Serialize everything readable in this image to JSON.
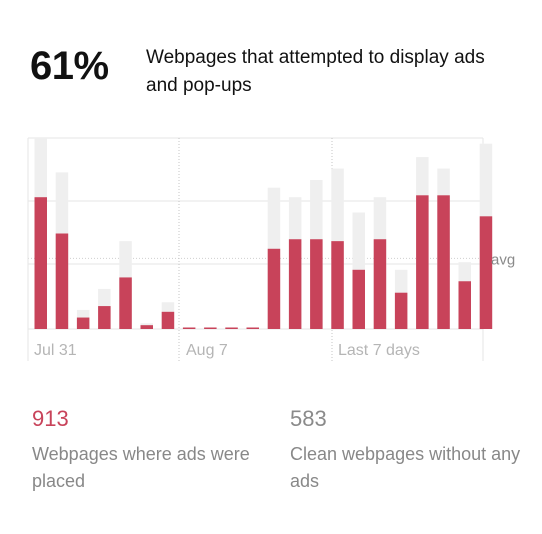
{
  "header": {
    "percent": "61%",
    "description": "Webpages that attempted to display ads and pop-ups"
  },
  "colors": {
    "ads": "#c8435a",
    "total": "#efefef",
    "grid": "#e6e6e6",
    "axis_text": "#b5b5b5"
  },
  "chart_data": {
    "type": "bar",
    "x_labels": [
      "Jul 31",
      "Aug 7",
      "Last 7 days"
    ],
    "avg_label": "avg",
    "ylim": [
      0,
      100
    ],
    "avg_value": 37,
    "grid": true,
    "series": [
      {
        "name": "ads",
        "values": [
          69,
          50,
          6,
          12,
          27,
          2,
          9,
          0,
          0,
          0,
          0,
          42,
          47,
          47,
          46,
          31,
          47,
          19,
          70,
          70,
          25,
          59
        ]
      },
      {
        "name": "total",
        "values": [
          100,
          82,
          10,
          21,
          46,
          3,
          14,
          0,
          0,
          0,
          0,
          74,
          69,
          78,
          84,
          61,
          69,
          31,
          90,
          84,
          35,
          97
        ]
      }
    ]
  },
  "stats": {
    "placed": {
      "value": "913",
      "label": "Webpages where ads were placed"
    },
    "clean": {
      "value": "583",
      "label": "Clean webpages without any ads"
    }
  }
}
